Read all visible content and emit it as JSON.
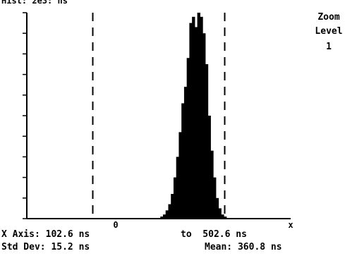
{
  "header": {
    "top_label": "Hist: 2e3: ns",
    "zoom_label": "Zoom",
    "level_label": "Level",
    "level_value": "1"
  },
  "axis": {
    "marker_zero": "0",
    "marker_x": "x",
    "x_axis_label": "X Axis: 102.6 ns",
    "x_axis_to": "to  502.6 ns"
  },
  "stats": {
    "std_dev": "Std Dev: 15.2 ns",
    "mean": "Mean: 360.8 ns"
  },
  "chart_data": {
    "type": "bar",
    "x_range": [
      102.6,
      502.6
    ],
    "x_unit": "ns",
    "cursors": [
      202.6,
      402.6
    ],
    "bins": [
      {
        "x": 307,
        "v": 0.01
      },
      {
        "x": 311,
        "v": 0.02
      },
      {
        "x": 315,
        "v": 0.04
      },
      {
        "x": 319,
        "v": 0.07
      },
      {
        "x": 323,
        "v": 0.12
      },
      {
        "x": 327,
        "v": 0.2
      },
      {
        "x": 331,
        "v": 0.3
      },
      {
        "x": 335,
        "v": 0.42
      },
      {
        "x": 339,
        "v": 0.56
      },
      {
        "x": 343,
        "v": 0.64
      },
      {
        "x": 347,
        "v": 0.78
      },
      {
        "x": 351,
        "v": 0.95
      },
      {
        "x": 355,
        "v": 0.98
      },
      {
        "x": 359,
        "v": 0.93
      },
      {
        "x": 363,
        "v": 1.0
      },
      {
        "x": 367,
        "v": 0.98
      },
      {
        "x": 371,
        "v": 0.9
      },
      {
        "x": 375,
        "v": 0.75
      },
      {
        "x": 379,
        "v": 0.5
      },
      {
        "x": 383,
        "v": 0.33
      },
      {
        "x": 387,
        "v": 0.2
      },
      {
        "x": 391,
        "v": 0.1
      },
      {
        "x": 395,
        "v": 0.05
      },
      {
        "x": 399,
        "v": 0.02
      },
      {
        "x": 403,
        "v": 0.01
      }
    ],
    "y_ticks": 10
  }
}
